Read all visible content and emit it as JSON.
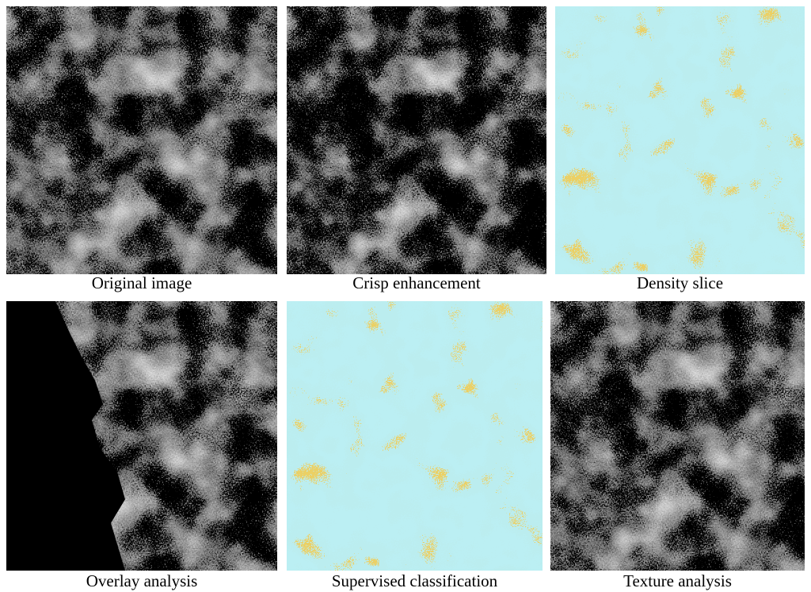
{
  "panels": [
    {
      "caption": "Original image"
    },
    {
      "caption": "Crisp enhancement"
    },
    {
      "caption": "Density slice"
    },
    {
      "caption": "Overlay analysis"
    },
    {
      "caption": "Supervised classification"
    },
    {
      "caption": "Texture analysis"
    }
  ]
}
